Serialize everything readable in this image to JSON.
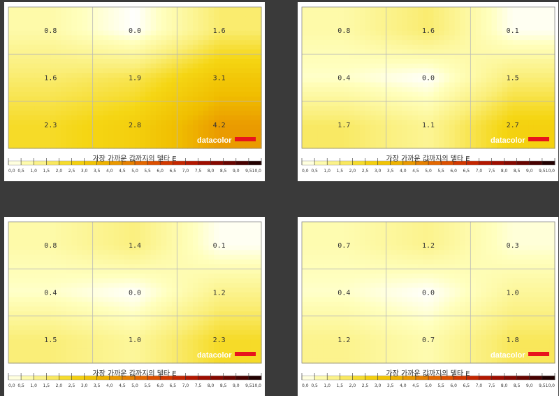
{
  "brand": {
    "name": "datacolor",
    "bar_color": "#e8141c"
  },
  "chart_data": [
    {
      "type": "heatmap",
      "title": "가장 가까운 값까지의 델타 E",
      "grid": {
        "rows": 3,
        "cols": 3
      },
      "values": [
        [
          0.8,
          0.0,
          1.6
        ],
        [
          1.6,
          1.9,
          3.1
        ],
        [
          2.3,
          2.8,
          4.2
        ]
      ],
      "labels": [
        [
          "0.8",
          "0.0",
          "1.6"
        ],
        [
          "1.6",
          "1.9",
          "3.1"
        ],
        [
          "2.3",
          "2.8",
          "4.2"
        ]
      ],
      "colorbar": {
        "min": 0,
        "max": 10,
        "ticks": [
          "0,0",
          "0,5",
          "1,0",
          "1,5",
          "2,0",
          "2,5",
          "3,0",
          "3,5",
          "4,0",
          "4,5",
          "5,0",
          "5,5",
          "6,0",
          "6,5",
          "7,0",
          "7,5",
          "8,0",
          "8,5",
          "9,0",
          "9,5",
          "10,0"
        ]
      }
    },
    {
      "type": "heatmap",
      "title": "가장 가까운 값까지의 델타 E",
      "grid": {
        "rows": 3,
        "cols": 3
      },
      "values": [
        [
          0.8,
          1.6,
          0.1
        ],
        [
          0.4,
          0.0,
          1.5
        ],
        [
          1.7,
          1.1,
          2.7
        ]
      ],
      "labels": [
        [
          "0.8",
          "1.6",
          "0.1"
        ],
        [
          "0.4",
          "0.0",
          "1.5"
        ],
        [
          "1.7",
          "1.1",
          "2.7"
        ]
      ],
      "colorbar": {
        "min": 0,
        "max": 10,
        "ticks": [
          "0,0",
          "0,5",
          "1,0",
          "1,5",
          "2,0",
          "2,5",
          "3,0",
          "3,5",
          "4,0",
          "4,5",
          "5,0",
          "5,5",
          "6,0",
          "6,5",
          "7,0",
          "7,5",
          "8,0",
          "8,5",
          "9,0",
          "9,5",
          "10,0"
        ]
      }
    },
    {
      "type": "heatmap",
      "title": "가장 가까운 값까지의 델타 E",
      "grid": {
        "rows": 3,
        "cols": 3
      },
      "values": [
        [
          0.8,
          1.4,
          0.1
        ],
        [
          0.4,
          0.0,
          1.2
        ],
        [
          1.5,
          1.0,
          2.3
        ]
      ],
      "labels": [
        [
          "0.8",
          "1.4",
          "0.1"
        ],
        [
          "0.4",
          "0.0",
          "1.2"
        ],
        [
          "1.5",
          "1.0",
          "2.3"
        ]
      ],
      "colorbar": {
        "min": 0,
        "max": 10,
        "ticks": [
          "0,0",
          "0,5",
          "1,0",
          "1,5",
          "2,0",
          "2,5",
          "3,0",
          "3,5",
          "4,0",
          "4,5",
          "5,0",
          "5,5",
          "6,0",
          "6,5",
          "7,0",
          "7,5",
          "8,0",
          "8,5",
          "9,0",
          "9,5",
          "10,0"
        ]
      }
    },
    {
      "type": "heatmap",
      "title": "가장 가까운 값까지의 델타 E",
      "grid": {
        "rows": 3,
        "cols": 3
      },
      "values": [
        [
          0.7,
          1.2,
          0.3
        ],
        [
          0.4,
          0.0,
          1.0
        ],
        [
          1.2,
          0.7,
          1.8
        ]
      ],
      "labels": [
        [
          "0.7",
          "1.2",
          "0.3"
        ],
        [
          "0.4",
          "0.0",
          "1.0"
        ],
        [
          "1.2",
          "0.7",
          "1.8"
        ]
      ],
      "colorbar": {
        "min": 0,
        "max": 10,
        "ticks": [
          "0,0",
          "0,5",
          "1,0",
          "1,5",
          "2,0",
          "2,5",
          "3,0",
          "3,5",
          "4,0",
          "4,5",
          "5,0",
          "5,5",
          "6,0",
          "6,5",
          "7,0",
          "7,5",
          "8,0",
          "8,5",
          "9,0",
          "9,5",
          "10,0"
        ]
      }
    }
  ]
}
